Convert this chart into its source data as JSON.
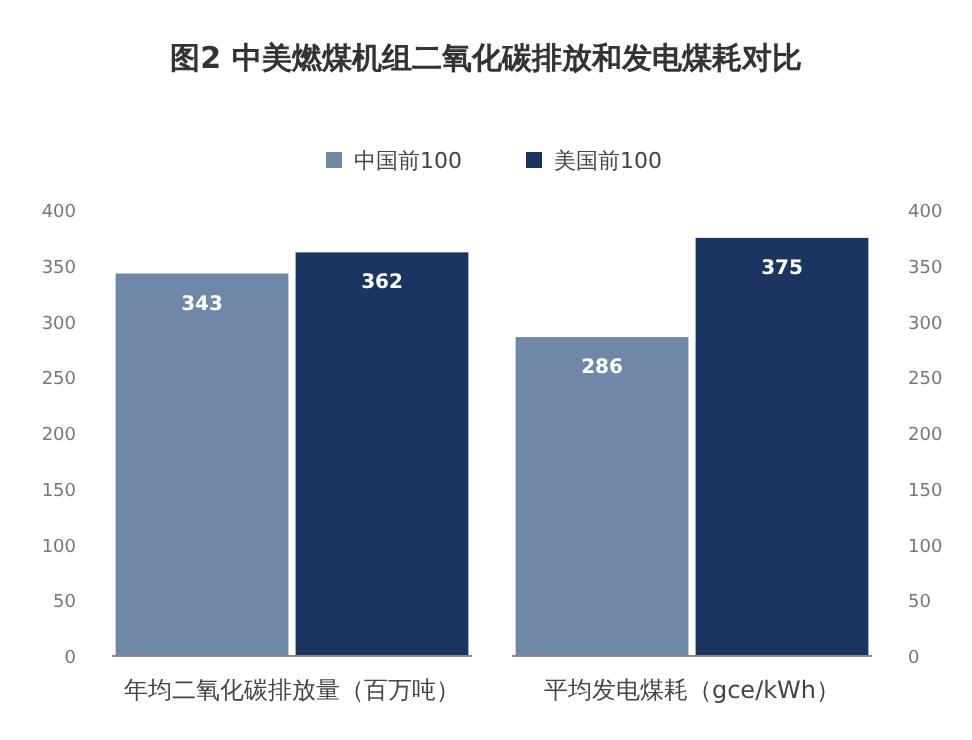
{
  "chart_data": {
    "type": "bar",
    "title": "图2 中美燃煤机组二氧化碳排放和发电煤耗对比",
    "categories": [
      "年均二氧化碳排放量（百万吨）",
      "平均发电煤耗（gce/kWh）"
    ],
    "series": [
      {
        "name": "中国前100",
        "color": "#7088a8",
        "values": [
          343,
          286
        ]
      },
      {
        "name": "美国前100",
        "color": "#1c3560",
        "values": [
          362,
          375
        ]
      }
    ],
    "ylim": [
      0,
      400
    ],
    "yticks": [
      0,
      50,
      100,
      150,
      200,
      250,
      300,
      350,
      400
    ],
    "y2lim": [
      0,
      400
    ],
    "y2ticks": [
      0,
      50,
      100,
      150,
      200,
      250,
      300,
      350,
      400
    ],
    "data_labels": true,
    "legend": "top",
    "grid": false
  }
}
